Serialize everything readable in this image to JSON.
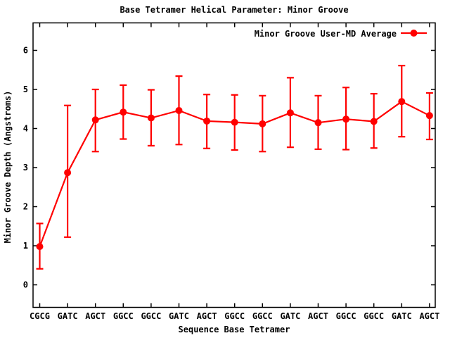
{
  "colors": {
    "series": "#ff0000",
    "axis": "#000000",
    "text": "#000000",
    "background": "#ffffff"
  },
  "legend": {
    "label": "Minor Groove User-MD Average",
    "position": "top-right inside plot",
    "marker": "filled-circle-on-line"
  },
  "chart_data": {
    "type": "line",
    "title": "Base Tetramer Helical Parameter: Minor Groove",
    "xlabel": "Sequence Base Tetramer",
    "ylabel": "Minor Groove Depth (Angstroms)",
    "categories": [
      "CGCG",
      "GATC",
      "AGCT",
      "GGCC",
      "GGCC",
      "GATC",
      "AGCT",
      "GGCC",
      "GGCC",
      "GATC",
      "AGCT",
      "GGCC",
      "GGCC",
      "GATC",
      "AGCT"
    ],
    "y_ticks": [
      0,
      1,
      2,
      3,
      4,
      5,
      6
    ],
    "ylim": [
      -0.58,
      6.7
    ],
    "grid": false,
    "error_bars": true,
    "legend_position": "top-right inside",
    "series": [
      {
        "name": "Minor Groove User-MD Average",
        "color": "#ff0000",
        "marker": "filled-circle",
        "values": [
          0.98,
          2.87,
          4.22,
          4.42,
          4.27,
          4.46,
          4.19,
          4.16,
          4.12,
          4.4,
          4.15,
          4.24,
          4.18,
          4.69,
          4.33
        ],
        "err_low": [
          0.41,
          1.22,
          3.41,
          3.73,
          3.56,
          3.59,
          3.49,
          3.45,
          3.41,
          3.52,
          3.47,
          3.46,
          3.5,
          3.79,
          3.72
        ],
        "err_high": [
          1.57,
          4.59,
          5.0,
          5.11,
          4.99,
          5.34,
          4.87,
          4.86,
          4.84,
          5.3,
          4.84,
          5.05,
          4.89,
          5.61,
          4.91
        ]
      }
    ]
  }
}
